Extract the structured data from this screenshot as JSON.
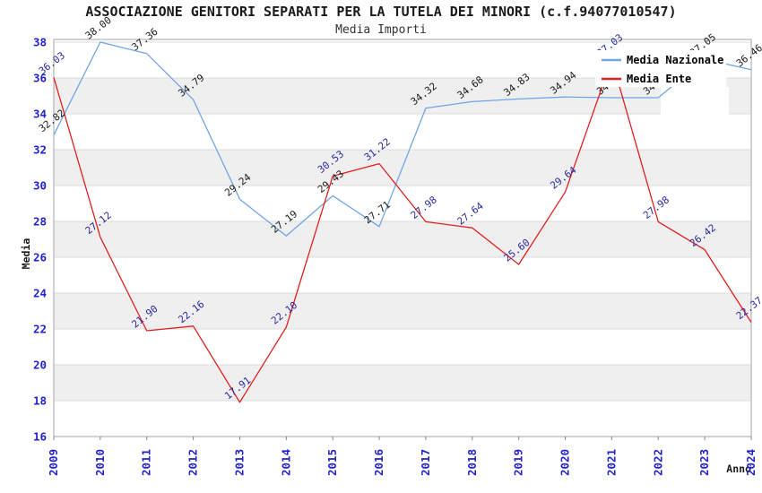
{
  "title": "ASSOCIAZIONE GENITORI SEPARATI PER LA TUTELA DEI MINORI (c.f.94077010547)",
  "subtitle": "Media Importi",
  "colors": {
    "nazionale_line": "#6FA5E6",
    "ente_line": "#E02020",
    "axis_tick_text": "#2222CC",
    "nazionale_label_text": "#1A1A1A",
    "ente_label_text": "#2A2AA0",
    "band_gray": "#EFEFEF",
    "gridline": "#DCDCDC",
    "frame": "#A6A6A6",
    "tick_mark": "#888888",
    "legend_bg": "#FFFFFF"
  },
  "legend": {
    "position": "top-right",
    "items": [
      "Media Nazionale",
      "Media Ente"
    ]
  },
  "chart_data": {
    "type": "line",
    "title": "ASSOCIAZIONE GENITORI SEPARATI PER LA TUTELA DEI MINORI (c.f.94077010547)",
    "subtitle": "Media Importi",
    "xlabel": "Anno",
    "ylabel": "Media",
    "x": [
      2009,
      2010,
      2011,
      2012,
      2013,
      2014,
      2015,
      2016,
      2017,
      2018,
      2019,
      2020,
      2021,
      2022,
      2023,
      2024
    ],
    "ylim": [
      16,
      38
    ],
    "y_tick_step": 2,
    "grid": "horizontal-bands-alternating",
    "legend_position": "top-right",
    "point_labels": "rotated -38deg above each point, 2 decimals",
    "series": [
      {
        "name": "Media Nazionale",
        "color": "#6FA5E6",
        "label_color": "#1A1A1A",
        "values": [
          32.82,
          38.0,
          37.36,
          34.79,
          29.24,
          27.19,
          29.43,
          27.71,
          34.32,
          34.68,
          34.83,
          34.94,
          34.9,
          34.9,
          37.05,
          36.46
        ],
        "note": "2021 and 2022 labels hidden behind legend; values estimated from flat line near 34.9"
      },
      {
        "name": "Media Ente",
        "color": "#E02020",
        "label_color": "#2A2AA0",
        "values": [
          36.03,
          27.12,
          21.9,
          22.16,
          17.91,
          22.1,
          30.53,
          31.22,
          27.98,
          27.64,
          25.6,
          29.64,
          37.03,
          27.98,
          26.42,
          22.37
        ]
      }
    ]
  }
}
